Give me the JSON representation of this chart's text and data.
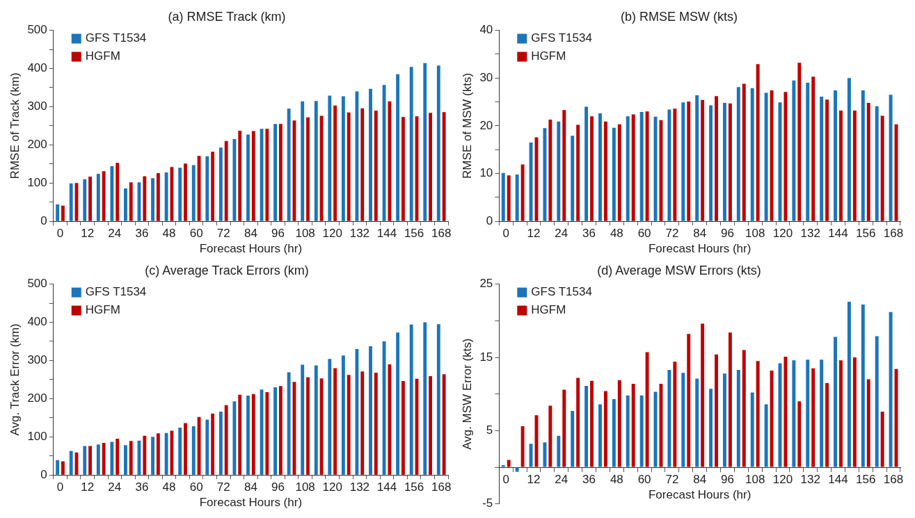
{
  "chart_data": [
    {
      "type": "bar",
      "title": "(a) RMSE Track (km)",
      "xlabel": "Forecast Hours (hr)",
      "ylabel": "RMSE of Track (km)",
      "categories": [
        "0",
        null,
        "12",
        null,
        "24",
        null,
        "36",
        null,
        "48",
        null,
        "60",
        null,
        "72",
        null,
        "84",
        null,
        "96",
        null,
        "108",
        null,
        "120",
        null,
        "132",
        null,
        "144",
        null,
        "156",
        null,
        "168"
      ],
      "series": [
        {
          "name": "GFS T1534",
          "color": "#1b75bc",
          "values": [
            44,
            99,
            110,
            124,
            144,
            86,
            102,
            113,
            128,
            140,
            147,
            170,
            193,
            215,
            227,
            242,
            255,
            295,
            314,
            315,
            329,
            327,
            340,
            347,
            357,
            385,
            404,
            414,
            408
          ]
        },
        {
          "name": "HGFM",
          "color": "#c00000",
          "values": [
            41,
            100,
            117,
            131,
            153,
            102,
            118,
            126,
            142,
            151,
            171,
            182,
            210,
            237,
            236,
            242,
            255,
            264,
            272,
            276,
            303,
            285,
            296,
            290,
            314,
            273,
            275,
            284,
            286
          ]
        }
      ],
      "ylim": [
        0,
        500
      ],
      "yticks": [
        0,
        {
          "value": 50,
          "label": null
        },
        100,
        {
          "value": 150,
          "label": null
        },
        200,
        {
          "value": 250,
          "label": null
        },
        300,
        {
          "value": 350,
          "label": null
        },
        400,
        {
          "value": 450,
          "label": null
        },
        500
      ],
      "legend": "top left",
      "grid": false
    },
    {
      "type": "bar",
      "title": "(b) RMSE MSW (kts)",
      "xlabel": "Forecast Hours (hr)",
      "ylabel": "RMSE of MSW (kts)",
      "categories": [
        "0",
        null,
        "12",
        null,
        "24",
        null,
        "36",
        null,
        "48",
        null,
        "60",
        null,
        "72",
        null,
        "84",
        null,
        "96",
        null,
        "108",
        null,
        "120",
        null,
        "132",
        null,
        "144",
        null,
        "156",
        null,
        "168"
      ],
      "series": [
        {
          "name": "GFS T1534",
          "color": "#1b75bc",
          "values": [
            10.1,
            9.8,
            16.5,
            19.5,
            20.9,
            17.9,
            24.0,
            22.6,
            19.6,
            22.0,
            22.9,
            21.9,
            23.4,
            24.9,
            26.4,
            24.3,
            24.8,
            28.1,
            27.9,
            26.9,
            24.9,
            29.5,
            29.0,
            26.1,
            27.4,
            30.0,
            27.4,
            24.1,
            26.5
          ]
        },
        {
          "name": "HGFM",
          "color": "#c00000",
          "values": [
            9.6,
            11.9,
            17.6,
            21.3,
            23.3,
            20.2,
            22.0,
            20.9,
            20.3,
            22.4,
            23.0,
            21.2,
            23.6,
            25.1,
            25.4,
            26.2,
            24.7,
            28.8,
            32.9,
            27.4,
            27.1,
            33.2,
            30.3,
            25.5,
            23.2,
            23.2,
            24.8,
            22.1,
            20.3
          ]
        }
      ],
      "ylim": [
        0,
        40
      ],
      "yticks": [
        0,
        {
          "value": 5,
          "label": null
        },
        10,
        {
          "value": 15,
          "label": null
        },
        20,
        {
          "value": 25,
          "label": null
        },
        30,
        {
          "value": 35,
          "label": null
        },
        40
      ],
      "legend": "top left",
      "grid": false
    },
    {
      "type": "bar",
      "title": "(c) Average Track Errors (km)",
      "xlabel": "Forecast Hours (hr)",
      "ylabel": "Avg. Track Error (km)",
      "categories": [
        "0",
        null,
        "12",
        null,
        "24",
        null,
        "36",
        null,
        "48",
        null,
        "60",
        null,
        "72",
        null,
        "84",
        null,
        "96",
        null,
        "108",
        null,
        "120",
        null,
        "132",
        null,
        "144",
        null,
        "156",
        null,
        "168"
      ],
      "series": [
        {
          "name": "GFS T1534",
          "color": "#1b75bc",
          "values": [
            39,
            63,
            76,
            80,
            87,
            78,
            90,
            100,
            110,
            124,
            128,
            145,
            166,
            193,
            208,
            224,
            230,
            269,
            289,
            287,
            304,
            313,
            330,
            337,
            350,
            373,
            394,
            400,
            395
          ]
        },
        {
          "name": "HGFM",
          "color": "#c00000",
          "values": [
            36,
            59,
            76,
            84,
            95,
            89,
            103,
            109,
            116,
            136,
            152,
            161,
            183,
            210,
            212,
            217,
            233,
            244,
            256,
            253,
            280,
            262,
            271,
            268,
            290,
            246,
            252,
            259,
            264
          ]
        }
      ],
      "ylim": [
        0,
        500
      ],
      "yticks": [
        0,
        {
          "value": 50,
          "label": null
        },
        100,
        {
          "value": 150,
          "label": null
        },
        200,
        {
          "value": 250,
          "label": null
        },
        300,
        {
          "value": 350,
          "label": null
        },
        400,
        {
          "value": 450,
          "label": null
        },
        500
      ],
      "legend": "top left",
      "grid": false
    },
    {
      "type": "bar",
      "title": "(d) Average MSW Errors (kts)",
      "xlabel": "Forecast Hours (hr)",
      "ylabel": "Avg. MSW Error (kts)",
      "categories": [
        "0",
        null,
        "12",
        null,
        "24",
        null,
        "36",
        null,
        "48",
        null,
        "60",
        null,
        "72",
        null,
        "84",
        null,
        "96",
        null,
        "108",
        null,
        "120",
        null,
        "132",
        null,
        "144",
        null,
        "156",
        null,
        "168"
      ],
      "series": [
        {
          "name": "GFS T1534",
          "color": "#1b75bc",
          "values": [
            0.3,
            -0.6,
            3.2,
            3.4,
            4.3,
            7.7,
            11.1,
            8.6,
            9.3,
            9.8,
            9.8,
            10.3,
            13.3,
            12.9,
            12.1,
            10.7,
            12.8,
            13.3,
            10.2,
            8.6,
            14.2,
            14.6,
            14.7,
            14.7,
            17.8,
            22.6,
            22.2,
            17.9,
            21.2
          ]
        },
        {
          "name": "HGFM",
          "color": "#c00000",
          "values": [
            1.0,
            5.6,
            7.1,
            8.4,
            10.6,
            12.2,
            11.8,
            10.4,
            11.9,
            11.4,
            15.7,
            11.4,
            14.4,
            18.2,
            19.6,
            15.4,
            18.4,
            16.0,
            14.5,
            13.2,
            15.1,
            9.0,
            13.5,
            11.5,
            14.6,
            15.0,
            12.0,
            7.6,
            13.4
          ]
        }
      ],
      "ylim": [
        -5,
        25
      ],
      "yticks": [
        -5,
        {
          "value": 0,
          "label": null
        },
        5,
        {
          "value": 10,
          "label": null
        },
        15,
        {
          "value": 20,
          "label": null
        },
        25
      ],
      "legend": "top left",
      "grid": false
    }
  ]
}
